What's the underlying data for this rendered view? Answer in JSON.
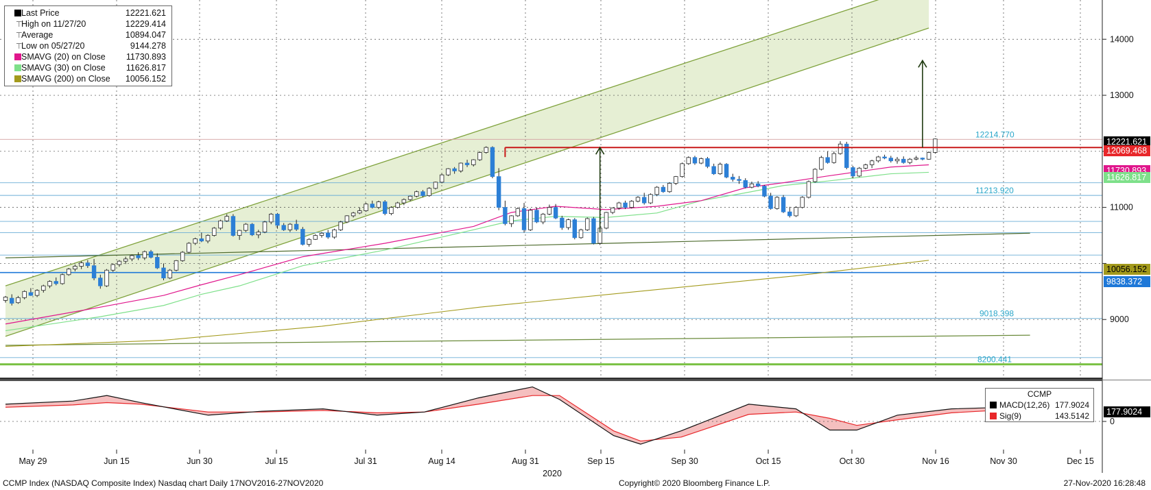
{
  "legend": {
    "rows": [
      {
        "label": "Last Price",
        "value": "12221.621",
        "color": "#000000",
        "kind": "box"
      },
      {
        "label": "High on 11/27/20",
        "value": "12229.414",
        "kind": "tick"
      },
      {
        "label": "Average",
        "value": "10894.047",
        "kind": "tick"
      },
      {
        "label": "Low on 05/27/20",
        "value": "9144.278",
        "kind": "tick"
      },
      {
        "label": "SMAVG (20)  on Close",
        "value": "11730.893",
        "color": "#e0168c",
        "kind": "box"
      },
      {
        "label": "SMAVG (30)  on Close",
        "value": "11626.817",
        "color": "#7ee08a",
        "kind": "box"
      },
      {
        "label": "SMAVG (200)  on Close",
        "value": "10056.152",
        "color": "#a39a1c",
        "kind": "box"
      }
    ]
  },
  "macd_legend": {
    "title": "CCMP",
    "rows": [
      {
        "label": "MACD(12,26)",
        "value": "177.9024",
        "color": "#000000"
      },
      {
        "label": "Sig(9)",
        "value": "143.5142",
        "color": "#e8272a"
      }
    ]
  },
  "footer": {
    "left": "CCMP Index (NASDAQ Composite Index) Nasdaq chart  Daily 17NOV2016-27NOV2020",
    "center": "Copyright© 2020 Bloomberg Finance L.P.",
    "right": "27-Nov-2020 16:28:48"
  },
  "chart_data": {
    "type": "line",
    "series_kind": "candlestick",
    "x_tick_labels": [
      "May 29",
      "Jun 15",
      "Jun 30",
      "Jul 15",
      "Jul 31",
      "Aug 14",
      "Aug 31",
      "Sep 15",
      "Sep 30",
      "Oct 15",
      "Oct 30",
      "Nov 16",
      "Nov 30",
      "Dec 15"
    ],
    "x_year_label": "2020",
    "y_ticks": [
      9000,
      10000,
      11000,
      12000,
      13000,
      14000
    ],
    "y_tick_labels": [
      "9000",
      "",
      "11000",
      "",
      "13000",
      "14000"
    ],
    "ylim": [
      8000,
      14700
    ],
    "price_level_labels": [
      "12214.770",
      "11213.920",
      "9018.398",
      "8200.441"
    ],
    "right_badges": [
      {
        "text": "12221.621",
        "value": 12221.621,
        "bg": "#000000",
        "fg": "#ffffff"
      },
      {
        "text": "12069.468",
        "value": 12069.468,
        "bg": "#e8272a",
        "fg": "#ffffff"
      },
      {
        "text": "11730.893",
        "value": 11730.893,
        "bg": "#e0168c",
        "fg": "#ffffff"
      },
      {
        "text": "11626.817",
        "value": 11626.817,
        "bg": "#7ee08a",
        "fg": "#ffffff"
      },
      {
        "text": "10056.152",
        "value": 10056.152,
        "bg": "#a39a1c",
        "fg": "#000000"
      },
      {
        "text": "9838.372",
        "value": 9838.372,
        "bg": "#1e78d8",
        "fg": "#ffffff"
      }
    ],
    "candles": [
      [
        9340,
        9420,
        9300,
        9400
      ],
      [
        9380,
        9450,
        9250,
        9290
      ],
      [
        9300,
        9420,
        9280,
        9390
      ],
      [
        9390,
        9520,
        9360,
        9500
      ],
      [
        9480,
        9560,
        9420,
        9430
      ],
      [
        9430,
        9540,
        9400,
        9520
      ],
      [
        9520,
        9620,
        9480,
        9600
      ],
      [
        9600,
        9700,
        9560,
        9680
      ],
      [
        9680,
        9750,
        9610,
        9640
      ],
      [
        9640,
        9820,
        9620,
        9800
      ],
      [
        9800,
        9920,
        9780,
        9900
      ],
      [
        9900,
        9980,
        9860,
        9950
      ],
      [
        9950,
        10040,
        9900,
        10010
      ],
      [
        10010,
        10060,
        9920,
        9960
      ],
      [
        9960,
        10080,
        9700,
        9740
      ],
      [
        9740,
        9800,
        9550,
        9600
      ],
      [
        9600,
        9900,
        9580,
        9880
      ],
      [
        9880,
        10000,
        9850,
        9980
      ],
      [
        9980,
        10060,
        9940,
        10040
      ],
      [
        10040,
        10120,
        9990,
        10080
      ],
      [
        10080,
        10160,
        10040,
        10140
      ],
      [
        10140,
        10200,
        10060,
        10100
      ],
      [
        10100,
        10230,
        10060,
        10210
      ],
      [
        10210,
        10240,
        10090,
        10110
      ],
      [
        10110,
        10180,
        9900,
        9920
      ],
      [
        9920,
        10000,
        9700,
        9740
      ],
      [
        9740,
        9900,
        9720,
        9880
      ],
      [
        9880,
        10060,
        9860,
        10050
      ],
      [
        10050,
        10220,
        10030,
        10200
      ],
      [
        10200,
        10380,
        10180,
        10360
      ],
      [
        10360,
        10460,
        10330,
        10440
      ],
      [
        10440,
        10550,
        10380,
        10400
      ],
      [
        10400,
        10520,
        10360,
        10500
      ],
      [
        10500,
        10650,
        10480,
        10630
      ],
      [
        10630,
        10780,
        10600,
        10760
      ],
      [
        10760,
        10880,
        10740,
        10840
      ],
      [
        10840,
        10880,
        10480,
        10500
      ],
      [
        10500,
        10600,
        10420,
        10590
      ],
      [
        10590,
        10720,
        10560,
        10700
      ],
      [
        10700,
        10720,
        10490,
        10510
      ],
      [
        10510,
        10600,
        10450,
        10560
      ],
      [
        10560,
        10760,
        10540,
        10740
      ],
      [
        10740,
        10900,
        10700,
        10880
      ],
      [
        10880,
        10900,
        10620,
        10680
      ],
      [
        10680,
        10720,
        10580,
        10600
      ],
      [
        10600,
        10720,
        10560,
        10700
      ],
      [
        10700,
        10780,
        10580,
        10610
      ],
      [
        10610,
        10650,
        10320,
        10340
      ],
      [
        10340,
        10450,
        10300,
        10430
      ],
      [
        10430,
        10520,
        10420,
        10500
      ],
      [
        10500,
        10560,
        10460,
        10540
      ],
      [
        10540,
        10600,
        10440,
        10470
      ],
      [
        10470,
        10620,
        10440,
        10600
      ],
      [
        10600,
        10760,
        10580,
        10740
      ],
      [
        10740,
        10860,
        10720,
        10850
      ],
      [
        10850,
        10920,
        10820,
        10900
      ],
      [
        10900,
        11000,
        10880,
        10940
      ],
      [
        10940,
        11080,
        10920,
        11060
      ],
      [
        11060,
        11120,
        10980,
        11000
      ],
      [
        11000,
        11120,
        10970,
        11100
      ],
      [
        11100,
        11130,
        10860,
        10890
      ],
      [
        10890,
        11020,
        10860,
        11000
      ],
      [
        11000,
        11100,
        10980,
        11080
      ],
      [
        11080,
        11160,
        11040,
        11140
      ],
      [
        11140,
        11210,
        11110,
        11200
      ],
      [
        11200,
        11300,
        11180,
        11280
      ],
      [
        11280,
        11310,
        11180,
        11210
      ],
      [
        11210,
        11360,
        11190,
        11340
      ],
      [
        11340,
        11460,
        11320,
        11450
      ],
      [
        11450,
        11600,
        11430,
        11580
      ],
      [
        11580,
        11700,
        11560,
        11690
      ],
      [
        11690,
        11720,
        11600,
        11650
      ],
      [
        11650,
        11800,
        11620,
        11790
      ],
      [
        11790,
        11850,
        11720,
        11760
      ],
      [
        11760,
        11860,
        11730,
        11850
      ],
      [
        11850,
        12000,
        11830,
        11980
      ],
      [
        11980,
        12090,
        11960,
        12070
      ],
      [
        12070,
        12090,
        11520,
        11550
      ],
      [
        11550,
        11700,
        10950,
        11000
      ],
      [
        11000,
        11120,
        10680,
        10710
      ],
      [
        10710,
        10860,
        10650,
        10850
      ],
      [
        10850,
        11000,
        10830,
        10980
      ],
      [
        10980,
        11080,
        10550,
        10600
      ],
      [
        10600,
        10980,
        10580,
        10950
      ],
      [
        10950,
        11000,
        10720,
        10740
      ],
      [
        10740,
        10900,
        10700,
        10880
      ],
      [
        10880,
        11050,
        10860,
        11000
      ],
      [
        11000,
        11060,
        10790,
        10810
      ],
      [
        10810,
        10850,
        10600,
        10640
      ],
      [
        10640,
        10800,
        10600,
        10780
      ],
      [
        10780,
        10810,
        10430,
        10460
      ],
      [
        10460,
        10620,
        10440,
        10600
      ],
      [
        10600,
        10820,
        10580,
        10800
      ],
      [
        10800,
        10830,
        10340,
        10360
      ],
      [
        10360,
        10650,
        10330,
        10630
      ],
      [
        10630,
        10920,
        10610,
        10910
      ],
      [
        10910,
        11000,
        10880,
        10990
      ],
      [
        10990,
        11100,
        10960,
        11080
      ],
      [
        11080,
        11120,
        10970,
        11000
      ],
      [
        11000,
        11130,
        10980,
        11110
      ],
      [
        11110,
        11200,
        11090,
        11180
      ],
      [
        11180,
        11260,
        11050,
        11080
      ],
      [
        11080,
        11250,
        11060,
        11230
      ],
      [
        11230,
        11380,
        11200,
        11360
      ],
      [
        11360,
        11400,
        11260,
        11280
      ],
      [
        11280,
        11450,
        11260,
        11430
      ],
      [
        11430,
        11560,
        11400,
        11550
      ],
      [
        11550,
        11800,
        11530,
        11780
      ],
      [
        11780,
        11910,
        11760,
        11890
      ],
      [
        11890,
        11920,
        11760,
        11790
      ],
      [
        11790,
        11890,
        11770,
        11870
      ],
      [
        11870,
        11900,
        11700,
        11730
      ],
      [
        11730,
        11780,
        11580,
        11600
      ],
      [
        11600,
        11800,
        11580,
        11770
      ],
      [
        11770,
        11790,
        11520,
        11540
      ],
      [
        11540,
        11600,
        11460,
        11500
      ],
      [
        11500,
        11560,
        11420,
        11480
      ],
      [
        11480,
        11520,
        11340,
        11360
      ],
      [
        11360,
        11460,
        11340,
        11420
      ],
      [
        11420,
        11470,
        11360,
        11380
      ],
      [
        11380,
        11400,
        11180,
        11200
      ],
      [
        11200,
        11260,
        10960,
        10980
      ],
      [
        10980,
        11200,
        10960,
        11180
      ],
      [
        11180,
        11220,
        10900,
        10920
      ],
      [
        10920,
        11010,
        10820,
        10850
      ],
      [
        10850,
        11020,
        10830,
        11000
      ],
      [
        11000,
        11200,
        10980,
        11180
      ],
      [
        11180,
        11480,
        11160,
        11460
      ],
      [
        11460,
        11700,
        11440,
        11680
      ],
      [
        11680,
        11920,
        11660,
        11890
      ],
      [
        11890,
        12000,
        11780,
        11800
      ],
      [
        11800,
        12000,
        11780,
        11960
      ],
      [
        11960,
        12180,
        11940,
        12130
      ],
      [
        12130,
        12170,
        11680,
        11710
      ],
      [
        11710,
        11740,
        11520,
        11560
      ],
      [
        11560,
        11720,
        11540,
        11700
      ],
      [
        11700,
        11780,
        11680,
        11760
      ],
      [
        11760,
        11850,
        11700,
        11830
      ],
      [
        11830,
        11920,
        11800,
        11900
      ],
      [
        11900,
        11940,
        11860,
        11880
      ],
      [
        11880,
        11920,
        11800,
        11830
      ],
      [
        11830,
        11900,
        11780,
        11860
      ],
      [
        11860,
        11910,
        11780,
        11800
      ],
      [
        11800,
        11880,
        11770,
        11860
      ],
      [
        11860,
        11920,
        11840,
        11880
      ],
      [
        11880,
        11890,
        11840,
        11860
      ],
      [
        11860,
        12000,
        11850,
        11980
      ],
      [
        11980,
        12230,
        11960,
        12221
      ]
    ],
    "sma20": [
      [
        0,
        8920
      ],
      [
        15,
        9220
      ],
      [
        25,
        9430
      ],
      [
        31,
        9620
      ],
      [
        37,
        9800
      ],
      [
        47,
        10120
      ],
      [
        60,
        10360
      ],
      [
        74,
        10660
      ],
      [
        80,
        10910
      ],
      [
        87,
        11020
      ],
      [
        95,
        10960
      ],
      [
        103,
        11020
      ],
      [
        110,
        11120
      ],
      [
        117,
        11350
      ],
      [
        123,
        11440
      ],
      [
        130,
        11560
      ],
      [
        140,
        11720
      ],
      [
        146,
        11760
      ]
    ],
    "sma30": [
      [
        0,
        8800
      ],
      [
        15,
        9050
      ],
      [
        25,
        9250
      ],
      [
        31,
        9450
      ],
      [
        37,
        9600
      ],
      [
        47,
        9960
      ],
      [
        60,
        10240
      ],
      [
        74,
        10600
      ],
      [
        80,
        10760
      ],
      [
        87,
        10840
      ],
      [
        95,
        10820
      ],
      [
        103,
        10900
      ],
      [
        110,
        11120
      ],
      [
        117,
        11260
      ],
      [
        123,
        11390
      ],
      [
        130,
        11470
      ],
      [
        140,
        11600
      ],
      [
        146,
        11626
      ]
    ],
    "sma200": [
      [
        0,
        8520
      ],
      [
        25,
        8630
      ],
      [
        50,
        8880
      ],
      [
        75,
        9220
      ],
      [
        100,
        9500
      ],
      [
        125,
        9780
      ],
      [
        146,
        10056
      ]
    ],
    "channel_lower": [
      [
        0,
        8700
      ],
      [
        146,
        14200
      ]
    ],
    "channel_upper": [
      [
        0,
        9600
      ],
      [
        146,
        15000
      ]
    ],
    "resistance": {
      "from": 79,
      "to": 162,
      "value": 12069
    },
    "horizontal_levels": [
      {
        "value": 12214.77,
        "color": "#d4a0a0"
      },
      {
        "value": 11440,
        "color": "#6aaed6"
      },
      {
        "value": 11213.92,
        "color": "#6aaed6"
      },
      {
        "value": 10750,
        "color": "#6aaed6"
      },
      {
        "value": 10550,
        "color": "#6aaed6"
      },
      {
        "value": 10150,
        "color": "#6aaed6"
      },
      {
        "value": 9838.372,
        "color": "#1e78d8"
      },
      {
        "value": 9018.398,
        "color": "#6aaed6"
      },
      {
        "value": 8320,
        "color": "#6aaed6"
      },
      {
        "value": 8200.441,
        "color": "#7ac143"
      }
    ],
    "trendlines": [
      {
        "from": [
          0,
          10100
        ],
        "to": [
          162,
          10540
        ],
        "color": "#4e6b2e"
      },
      {
        "from": [
          0,
          8540
        ],
        "to": [
          162,
          8720
        ],
        "color": "#6a8a3a"
      }
    ],
    "arrows": [
      {
        "at": 94,
        "from": 10550,
        "to": 12069
      },
      {
        "at": 145,
        "from": 12069,
        "to": 13620
      }
    ],
    "macd": {
      "ylim": [
        -350,
        480
      ],
      "y_ticks": [
        0
      ],
      "y_tick_labels": [
        "0"
      ],
      "macd": [
        [
          0,
          220
        ],
        [
          10,
          260
        ],
        [
          15,
          330
        ],
        [
          20,
          240
        ],
        [
          30,
          80
        ],
        [
          38,
          130
        ],
        [
          47,
          160
        ],
        [
          55,
          80
        ],
        [
          62,
          120
        ],
        [
          70,
          300
        ],
        [
          78,
          440
        ],
        [
          82,
          280
        ],
        [
          90,
          -180
        ],
        [
          94,
          -290
        ],
        [
          100,
          -120
        ],
        [
          110,
          220
        ],
        [
          117,
          160
        ],
        [
          122,
          -110
        ],
        [
          126,
          -110
        ],
        [
          132,
          80
        ],
        [
          140,
          160
        ],
        [
          147,
          178
        ]
      ],
      "signal": [
        [
          0,
          180
        ],
        [
          10,
          210
        ],
        [
          15,
          240
        ],
        [
          20,
          220
        ],
        [
          30,
          120
        ],
        [
          38,
          120
        ],
        [
          47,
          140
        ],
        [
          55,
          110
        ],
        [
          62,
          120
        ],
        [
          70,
          220
        ],
        [
          78,
          330
        ],
        [
          82,
          330
        ],
        [
          90,
          -120
        ],
        [
          94,
          -250
        ],
        [
          100,
          -200
        ],
        [
          110,
          90
        ],
        [
          117,
          120
        ],
        [
          122,
          40
        ],
        [
          126,
          -50
        ],
        [
          132,
          20
        ],
        [
          140,
          110
        ],
        [
          147,
          143
        ]
      ]
    }
  }
}
